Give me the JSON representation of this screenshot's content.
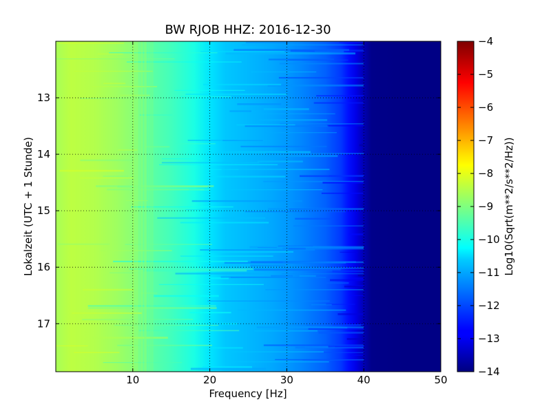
{
  "chart_data": {
    "type": "heatmap",
    "title": "BW RJOB HHZ: 2016-12-30",
    "xlabel": "Frequency [Hz]",
    "ylabel": "Lokalzeit (UTC + 1 Stunde)",
    "xlim": [
      0,
      50
    ],
    "ylim": [
      17.85,
      12.0
    ],
    "x_ticks": [
      10,
      20,
      30,
      40,
      50
    ],
    "x_tick_labels": [
      "10",
      "20",
      "30",
      "40",
      "50"
    ],
    "y_ticks": [
      13,
      14,
      15,
      16,
      17
    ],
    "y_tick_labels": [
      "13",
      "14",
      "15",
      "16",
      "17"
    ],
    "grid": true,
    "colorbar": {
      "label": "Log10(Sqrt(m**2/s**2/Hz))",
      "range": [
        -14,
        -4
      ],
      "ticks": [
        -4,
        -5,
        -6,
        -7,
        -8,
        -9,
        -10,
        -11,
        -12,
        -13,
        -14
      ],
      "tick_labels": [
        "−4",
        "−5",
        "−6",
        "−7",
        "−8",
        "−9",
        "−10",
        "−11",
        "−12",
        "−13",
        "−14"
      ],
      "colormap": "jet"
    },
    "profile": {
      "frequency_hz": [
        0,
        2,
        5,
        8,
        10,
        12,
        15,
        18,
        20,
        22,
        25,
        28,
        30,
        32,
        35,
        37,
        38,
        39,
        40,
        41,
        45,
        50
      ],
      "log10_amplitude": [
        -8.6,
        -8.4,
        -8.5,
        -8.7,
        -8.9,
        -9.3,
        -9.6,
        -10.0,
        -10.5,
        -10.8,
        -10.95,
        -11.1,
        -11.25,
        -11.45,
        -11.8,
        -12.2,
        -12.6,
        -13.0,
        -13.5,
        -13.9,
        -13.95,
        -13.95
      ]
    }
  }
}
